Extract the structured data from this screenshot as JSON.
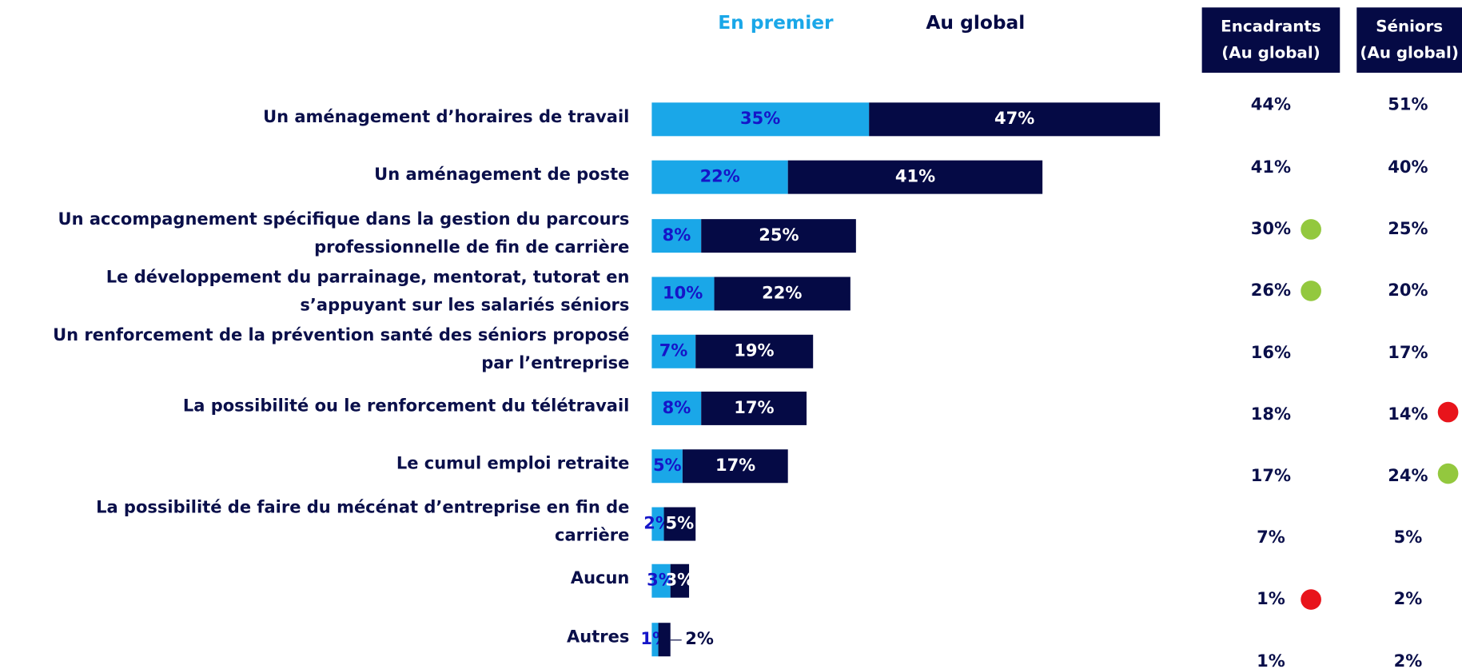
{
  "chart_data": {
    "type": "stacked-bar-horizontal",
    "categories": [
      [
        "Un aménagement d’horaires de travail"
      ],
      [
        "Un aménagement de poste"
      ],
      [
        "Un accompagnement spécifique dans la gestion du parcours",
        "professionnelle de fin de carrière"
      ],
      [
        "Le développement du parrainage, mentorat, tutorat en",
        "s’appuyant sur les salariés séniors"
      ],
      [
        "Un renforcement de la prévention santé des séniors proposé",
        "par l’entreprise"
      ],
      [
        "La possibilité ou le renforcement du télétravail"
      ],
      [
        "Le cumul emploi retraite"
      ],
      [
        "La possibilité de faire du mécénat d’entreprise en fin de",
        "carrière"
      ],
      [
        "Aucun"
      ],
      [
        "Autres"
      ]
    ],
    "series": [
      {
        "name": "En premier",
        "color": "#1aa7e8",
        "label_color": "#1515c8",
        "values": [
          35,
          22,
          8,
          10,
          7,
          8,
          5,
          2,
          3,
          1
        ],
        "value_labels": [
          "35%",
          "22%",
          "8%",
          "10%",
          "7%",
          "8%",
          "5%",
          "2%",
          "3%",
          "1%"
        ]
      },
      {
        "name": "Au global",
        "color": "#050a45",
        "label_color": "#ffffff",
        "values": [
          47,
          41,
          25,
          22,
          19,
          17,
          17,
          5,
          3,
          2
        ],
        "value_labels": [
          "47%",
          "41%",
          "25%",
          "22%",
          "19%",
          "17%",
          "17%",
          "5%",
          "3%",
          "2%"
        ]
      }
    ],
    "table": {
      "columns": [
        {
          "header": [
            "Encadrants",
            "(Au global)"
          ],
          "values": [
            44,
            41,
            30,
            26,
            16,
            18,
            17,
            7,
            1,
            1
          ],
          "value_labels": [
            "44%",
            "41%",
            "30%",
            "26%",
            "16%",
            "18%",
            "17%",
            "7%",
            "1%",
            "1%"
          ],
          "dot_colors": [
            null,
            null,
            "#93c83e",
            "#93c83e",
            null,
            null,
            null,
            null,
            "#e8141b",
            null
          ]
        },
        {
          "header": [
            "Séniors",
            "(Au global)"
          ],
          "values": [
            51,
            40,
            25,
            20,
            17,
            14,
            24,
            5,
            2,
            2
          ],
          "value_labels": [
            "51%",
            "40%",
            "25%",
            "20%",
            "17%",
            "14%",
            "24%",
            "5%",
            "2%",
            "2%"
          ],
          "dot_colors": [
            null,
            null,
            null,
            null,
            null,
            "#e8141b",
            "#93c83e",
            null,
            null,
            null
          ]
        }
      ]
    }
  }
}
